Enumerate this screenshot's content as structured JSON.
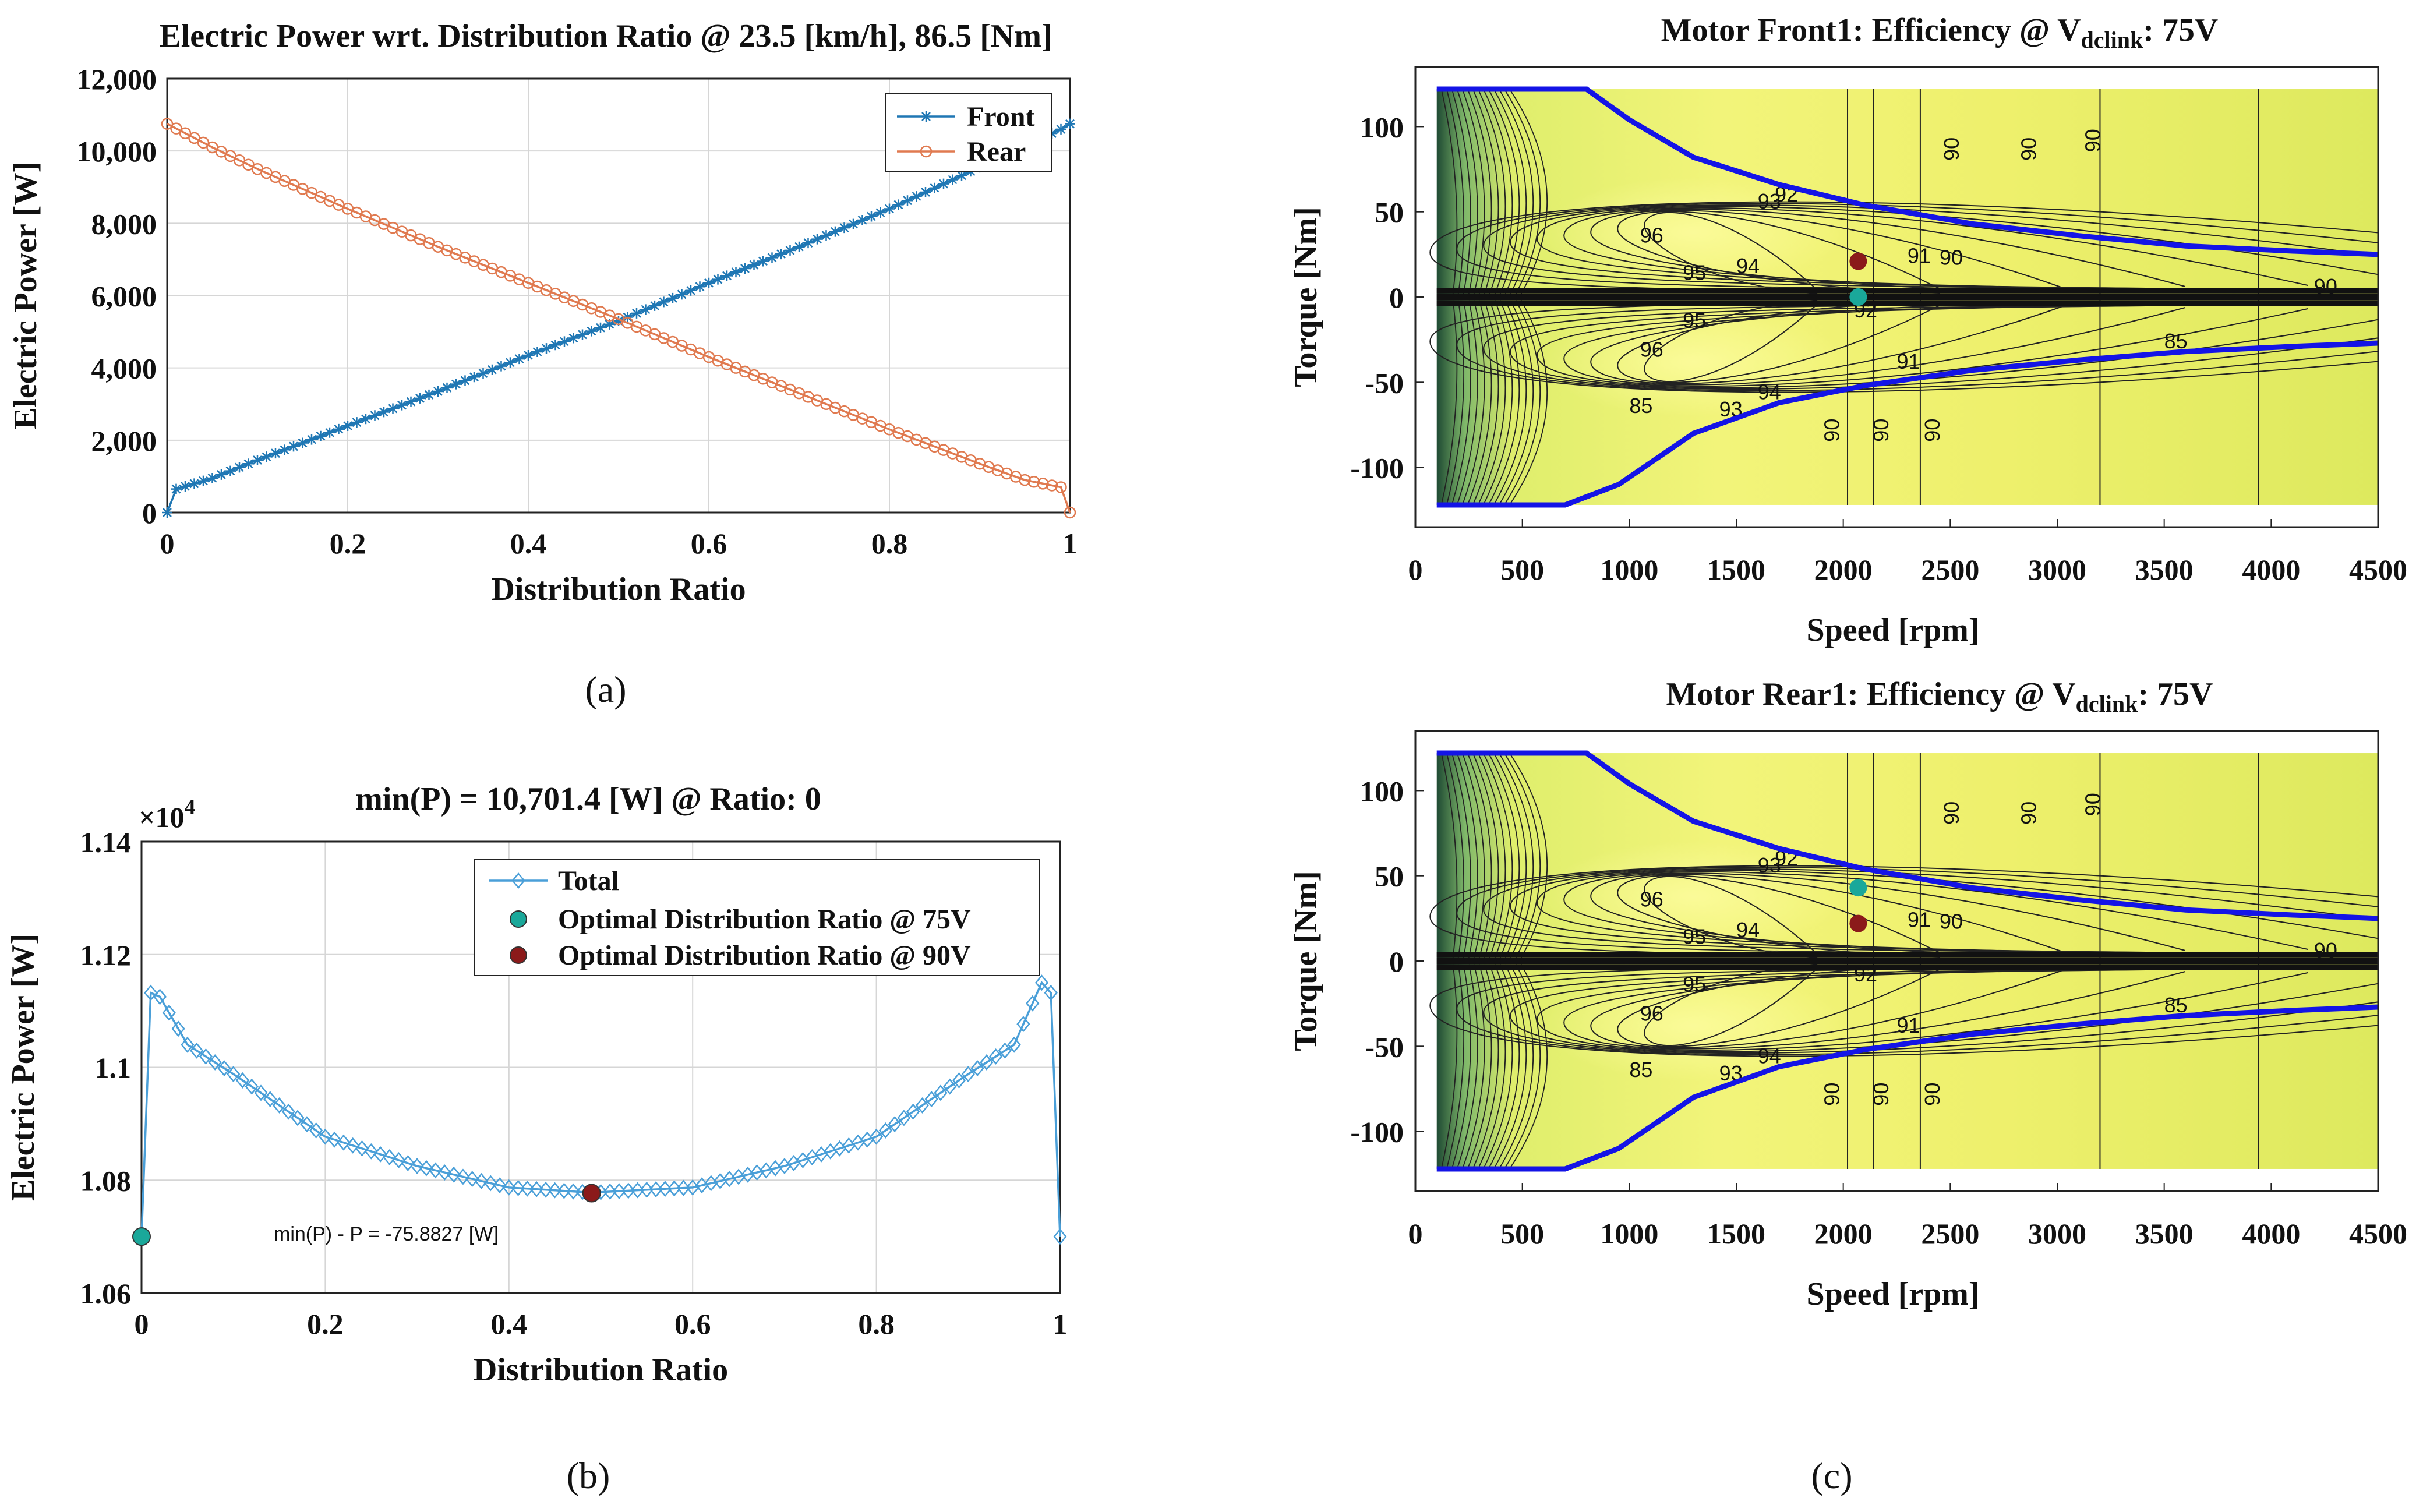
{
  "chart_data": [
    {
      "id": "a",
      "type": "line",
      "title": "Electric Power wrt. Distribution Ratio @ 23.5 [km/h], 86.5 [Nm]",
      "xlabel": "Distribution Ratio",
      "ylabel": "Electric Power [W]",
      "panel_label": "(a)",
      "xlim": [
        0,
        1
      ],
      "ylim": [
        0,
        12000
      ],
      "xticks": [
        0,
        0.2,
        0.4,
        0.6,
        0.8,
        1
      ],
      "xtick_labels": [
        "0",
        "0.2",
        "0.4",
        "0.6",
        "0.8",
        "1"
      ],
      "yticks": [
        0,
        2000,
        4000,
        6000,
        8000,
        10000,
        12000
      ],
      "ytick_labels": [
        "0",
        "2,000",
        "4,000",
        "6,000",
        "8,000",
        "10,000",
        "12,000"
      ],
      "grid": true,
      "legend_position": "top-right",
      "series": [
        {
          "name": "Front",
          "color": "#1f77b4",
          "marker": "star",
          "x": [
            0,
            0.01,
            0.05,
            0.1,
            0.2,
            0.3,
            0.4,
            0.5,
            0.6,
            0.7,
            0.8,
            0.9,
            0.99,
            1
          ],
          "y": [
            0,
            650,
            950,
            1450,
            2400,
            3350,
            4350,
            5300,
            6350,
            7350,
            8400,
            9550,
            10600,
            10750
          ]
        },
        {
          "name": "Rear",
          "color": "#e07a50",
          "marker": "circle",
          "x": [
            0,
            0.05,
            0.1,
            0.2,
            0.3,
            0.4,
            0.5,
            0.6,
            0.7,
            0.8,
            0.9,
            0.95,
            0.99,
            1
          ],
          "y": [
            10750,
            10100,
            9500,
            8400,
            7350,
            6350,
            5350,
            4300,
            3300,
            2300,
            1350,
            900,
            700,
            0
          ]
        }
      ]
    },
    {
      "id": "b",
      "type": "line",
      "title": "min(P) = 10,701.4 [W] @ Ratio: 0",
      "xlabel": "Distribution Ratio",
      "ylabel": "Electric Power [W]",
      "panel_label": "(b)",
      "y_exponent_label": "×10",
      "y_exponent_power": "4",
      "xlim": [
        0,
        1
      ],
      "ylim": [
        1.06,
        1.14
      ],
      "xticks": [
        0,
        0.2,
        0.4,
        0.6,
        0.8,
        1
      ],
      "xtick_labels": [
        "0",
        "0.2",
        "0.4",
        "0.6",
        "0.8",
        "1"
      ],
      "yticks": [
        1.06,
        1.08,
        1.1,
        1.12,
        1.14
      ],
      "ytick_labels": [
        "1.06",
        "1.08",
        "1.1",
        "1.12",
        "1.14"
      ],
      "grid": true,
      "legend_position": "top-right",
      "annotation": "min(P) - P = -75.8827 [W]",
      "series": [
        {
          "name": "Total",
          "color": "#4a9fd8",
          "marker": "diamond",
          "x": [
            0,
            0.01,
            0.02,
            0.05,
            0.1,
            0.2,
            0.3,
            0.4,
            0.49,
            0.6,
            0.7,
            0.8,
            0.9,
            0.95,
            0.98,
            0.99,
            1
          ],
          "y": [
            1.07,
            1.1132,
            1.1125,
            1.104,
            1.0988,
            1.0877,
            1.0825,
            1.0787,
            1.0778,
            1.0787,
            1.0825,
            1.0877,
            1.0988,
            1.104,
            1.115,
            1.1132,
            1.07
          ]
        }
      ],
      "points": [
        {
          "name": "Optimal Distribution Ratio @ 75V",
          "color": "#1aa89a",
          "x": 0,
          "y": 1.07
        },
        {
          "name": "Optimal Distribution Ratio @ 90V",
          "color": "#8b1a1a",
          "x": 0.49,
          "y": 1.0777
        }
      ]
    },
    {
      "id": "c1",
      "type": "heatmap",
      "title_prefix": "Motor Front1: Efficiency @ V",
      "title_subscript": "dclink",
      "title_suffix": ": 75V",
      "xlabel": "Speed [rpm]",
      "ylabel": "Torque [Nm]",
      "xlim": [
        0,
        4500
      ],
      "ylim": [
        -135,
        135
      ],
      "xticks": [
        0,
        500,
        1000,
        1500,
        2000,
        2500,
        3000,
        3500,
        4000,
        4500
      ],
      "xtick_labels": [
        "0",
        "500",
        "1000",
        "1500",
        "2000",
        "2500",
        "3000",
        "3500",
        "4000",
        "4500"
      ],
      "yticks": [
        100,
        50,
        0,
        -50,
        -100
      ],
      "ytick_labels": [
        "100",
        "50",
        "0",
        "-50",
        "-100"
      ],
      "contour_labels": [
        "96",
        "95",
        "94",
        "93",
        "92",
        "91",
        "90",
        "85"
      ],
      "vertical_labels": [
        "90",
        "90",
        "90",
        "90",
        "90",
        "90"
      ],
      "points": [
        {
          "color": "#8b1a1a",
          "x": 2070,
          "y": 21
        },
        {
          "color": "#1aa89a",
          "x": 2070,
          "y": 0
        }
      ]
    },
    {
      "id": "c2",
      "type": "heatmap",
      "title_prefix": "Motor Rear1: Efficiency @ V",
      "title_subscript": "dclink",
      "title_suffix": ": 75V",
      "xlabel": "Speed [rpm]",
      "ylabel": "Torque [Nm]",
      "panel_label": "(c)",
      "xlim": [
        0,
        4500
      ],
      "ylim": [
        -135,
        135
      ],
      "xticks": [
        0,
        500,
        1000,
        1500,
        2000,
        2500,
        3000,
        3500,
        4000,
        4500
      ],
      "xtick_labels": [
        "0",
        "500",
        "1000",
        "1500",
        "2000",
        "2500",
        "3000",
        "3500",
        "4000",
        "4500"
      ],
      "yticks": [
        100,
        50,
        0,
        -50,
        -100
      ],
      "ytick_labels": [
        "100",
        "50",
        "0",
        "-50",
        "-100"
      ],
      "contour_labels": [
        "96",
        "95",
        "94",
        "93",
        "92",
        "91",
        "90",
        "85"
      ],
      "vertical_labels": [
        "90",
        "90",
        "90",
        "90",
        "90",
        "90"
      ],
      "points": [
        {
          "color": "#1aa89a",
          "x": 2070,
          "y": 43
        },
        {
          "color": "#8b1a1a",
          "x": 2070,
          "y": 22
        }
      ]
    }
  ]
}
